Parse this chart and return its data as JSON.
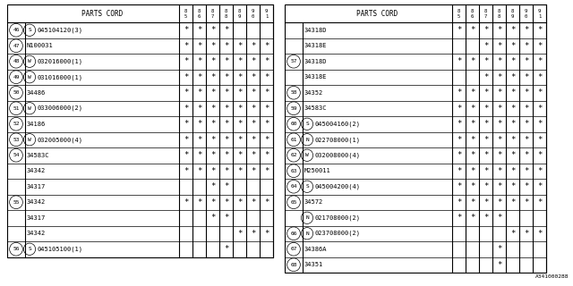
{
  "watermark": "A341000288",
  "col_headers": [
    "8\n5",
    "8\n6",
    "8\n7",
    "8\n8",
    "8\n9",
    "9\n0",
    "9\n1"
  ],
  "left_table": {
    "header": "PARTS CORD",
    "rows": [
      {
        "num": "46",
        "part": "S",
        "part_code": "045104120(3)",
        "marks": [
          1,
          1,
          1,
          1,
          0,
          0,
          0
        ]
      },
      {
        "num": "47",
        "part": "",
        "part_code": "N100031",
        "marks": [
          1,
          1,
          1,
          1,
          1,
          1,
          1
        ]
      },
      {
        "num": "48",
        "part": "W",
        "part_code": "032016000(1)",
        "marks": [
          1,
          1,
          1,
          1,
          1,
          1,
          1
        ]
      },
      {
        "num": "49",
        "part": "W",
        "part_code": "031016000(1)",
        "marks": [
          1,
          1,
          1,
          1,
          1,
          1,
          1
        ]
      },
      {
        "num": "50",
        "part": "",
        "part_code": "34486",
        "marks": [
          1,
          1,
          1,
          1,
          1,
          1,
          1
        ]
      },
      {
        "num": "51",
        "part": "W",
        "part_code": "033006000(2)",
        "marks": [
          1,
          1,
          1,
          1,
          1,
          1,
          1
        ]
      },
      {
        "num": "52",
        "part": "",
        "part_code": "34186",
        "marks": [
          1,
          1,
          1,
          1,
          1,
          1,
          1
        ]
      },
      {
        "num": "53",
        "part": "W",
        "part_code": "032005000(4)",
        "marks": [
          1,
          1,
          1,
          1,
          1,
          1,
          1
        ]
      },
      {
        "num": "54",
        "part": "",
        "part_code": "34583C",
        "marks": [
          1,
          1,
          1,
          1,
          1,
          1,
          1
        ]
      },
      {
        "num": "",
        "part": "",
        "part_code": "34342",
        "marks": [
          1,
          1,
          1,
          1,
          1,
          1,
          1
        ]
      },
      {
        "num": "",
        "part": "",
        "part_code": "34317",
        "marks": [
          0,
          0,
          1,
          1,
          0,
          0,
          0
        ]
      },
      {
        "num": "55",
        "part": "",
        "part_code": "34342",
        "marks": [
          1,
          1,
          1,
          1,
          1,
          1,
          1
        ]
      },
      {
        "num": "",
        "part": "",
        "part_code": "34317",
        "marks": [
          0,
          0,
          1,
          1,
          0,
          0,
          0
        ]
      },
      {
        "num": "",
        "part": "",
        "part_code": "34342",
        "marks": [
          0,
          0,
          0,
          0,
          1,
          1,
          1
        ]
      },
      {
        "num": "56",
        "part": "S",
        "part_code": "045105100(1)",
        "marks": [
          0,
          0,
          0,
          1,
          0,
          0,
          0
        ]
      }
    ]
  },
  "right_table": {
    "header": "PARTS CORD",
    "rows": [
      {
        "num": "",
        "part": "",
        "part_code": "34318D",
        "marks": [
          1,
          1,
          1,
          1,
          1,
          1,
          1
        ]
      },
      {
        "num": "",
        "part": "",
        "part_code": "34318E",
        "marks": [
          0,
          0,
          1,
          1,
          1,
          1,
          1
        ]
      },
      {
        "num": "57",
        "part": "",
        "part_code": "34318D",
        "marks": [
          1,
          1,
          1,
          1,
          1,
          1,
          1
        ]
      },
      {
        "num": "",
        "part": "",
        "part_code": "34318E",
        "marks": [
          0,
          0,
          1,
          1,
          1,
          1,
          1
        ]
      },
      {
        "num": "58",
        "part": "",
        "part_code": "34352",
        "marks": [
          1,
          1,
          1,
          1,
          1,
          1,
          1
        ]
      },
      {
        "num": "59",
        "part": "",
        "part_code": "34583C",
        "marks": [
          1,
          1,
          1,
          1,
          1,
          1,
          1
        ]
      },
      {
        "num": "60",
        "part": "S",
        "part_code": "045004160(2)",
        "marks": [
          1,
          1,
          1,
          1,
          1,
          1,
          1
        ]
      },
      {
        "num": "61",
        "part": "N",
        "part_code": "022708000(1)",
        "marks": [
          1,
          1,
          1,
          1,
          1,
          1,
          1
        ]
      },
      {
        "num": "62",
        "part": "W",
        "part_code": "032008000(4)",
        "marks": [
          1,
          1,
          1,
          1,
          1,
          1,
          1
        ]
      },
      {
        "num": "63",
        "part": "",
        "part_code": "M250011",
        "marks": [
          1,
          1,
          1,
          1,
          1,
          1,
          1
        ]
      },
      {
        "num": "64",
        "part": "S",
        "part_code": "045004200(4)",
        "marks": [
          1,
          1,
          1,
          1,
          1,
          1,
          1
        ]
      },
      {
        "num": "65",
        "part": "",
        "part_code": "34572",
        "marks": [
          1,
          1,
          1,
          1,
          1,
          1,
          1
        ]
      },
      {
        "num": "",
        "part": "N",
        "part_code": "021708000(2)",
        "marks": [
          1,
          1,
          1,
          1,
          0,
          0,
          0
        ]
      },
      {
        "num": "66",
        "part": "N",
        "part_code": "023708000(2)",
        "marks": [
          0,
          0,
          0,
          0,
          1,
          1,
          1
        ]
      },
      {
        "num": "67",
        "part": "",
        "part_code": "34386A",
        "marks": [
          0,
          0,
          0,
          1,
          0,
          0,
          0
        ]
      },
      {
        "num": "68",
        "part": "",
        "part_code": "34351",
        "marks": [
          0,
          0,
          0,
          1,
          0,
          0,
          0
        ]
      }
    ]
  },
  "bg_color": "#ffffff",
  "line_color": "#000000",
  "text_color": "#000000"
}
